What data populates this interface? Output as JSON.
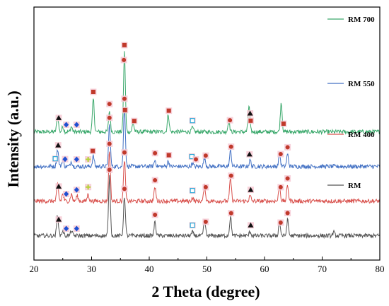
{
  "chart_data": {
    "type": "line",
    "xlabel": "2 Theta (degree)",
    "ylabel": "Intensity (a.u.)",
    "xlim": [
      20,
      80
    ],
    "xticks": [
      20,
      30,
      40,
      50,
      60,
      70,
      80
    ],
    "yticks_shown": false,
    "grid": false,
    "legend_placement": "top-right",
    "series": [
      {
        "name": "RM 700",
        "color": "#3aa86b",
        "offset": 3.0,
        "noise": 0.06,
        "peaks": [
          {
            "x": 24.1,
            "h": 0.45
          },
          {
            "x": 25.0,
            "h": 0.15
          },
          {
            "x": 26.5,
            "h": 0.15
          },
          {
            "x": 30.3,
            "h": 0.95
          },
          {
            "x": 33.1,
            "h": 0.6
          },
          {
            "x": 35.7,
            "h": 2.3
          },
          {
            "x": 37.2,
            "h": 0.25
          },
          {
            "x": 43.3,
            "h": 0.5
          },
          {
            "x": 47.5,
            "h": 0.12
          },
          {
            "x": 53.8,
            "h": 0.3
          },
          {
            "x": 57.3,
            "h": 0.75
          },
          {
            "x": 62.9,
            "h": 0.85
          }
        ],
        "markers": [
          {
            "x": 24.3,
            "symbol": "triangle"
          },
          {
            "x": 25.6,
            "symbol": "diamond"
          },
          {
            "x": 27.4,
            "symbol": "diamond"
          },
          {
            "x": 30.3,
            "symbol": "square"
          },
          {
            "x": 33.1,
            "symbol": "circle"
          },
          {
            "x": 35.6,
            "symbol": "circle"
          },
          {
            "x": 35.7,
            "symbol": "square"
          },
          {
            "x": 37.4,
            "symbol": "square"
          },
          {
            "x": 43.4,
            "symbol": "square"
          },
          {
            "x": 47.5,
            "symbol": "open-square"
          },
          {
            "x": 54.0,
            "symbol": "circle"
          },
          {
            "x": 57.5,
            "symbol": "triangle"
          },
          {
            "x": 57.6,
            "symbol": "square"
          },
          {
            "x": 63.3,
            "symbol": "square"
          }
        ]
      },
      {
        "name": "RM 550",
        "color": "#4472c4",
        "offset": 2.0,
        "noise": 0.06,
        "peaks": [
          {
            "x": 24.1,
            "h": 0.5
          },
          {
            "x": 25.0,
            "h": 0.2
          },
          {
            "x": 26.5,
            "h": 0.15
          },
          {
            "x": 30.3,
            "h": 0.3
          },
          {
            "x": 33.1,
            "h": 1.2
          },
          {
            "x": 35.7,
            "h": 1.75
          },
          {
            "x": 41.0,
            "h": 0.18
          },
          {
            "x": 43.3,
            "h": 0.15
          },
          {
            "x": 47.5,
            "h": 0.1
          },
          {
            "x": 49.6,
            "h": 0.25
          },
          {
            "x": 54.1,
            "h": 0.45
          },
          {
            "x": 57.5,
            "h": 0.18
          },
          {
            "x": 62.6,
            "h": 0.35
          },
          {
            "x": 64.0,
            "h": 0.35
          }
        ],
        "markers": [
          {
            "x": 23.7,
            "symbol": "open-square"
          },
          {
            "x": 24.2,
            "symbol": "triangle"
          },
          {
            "x": 25.4,
            "symbol": "diamond"
          },
          {
            "x": 27.4,
            "symbol": "diamond"
          },
          {
            "x": 29.4,
            "symbol": "cross"
          },
          {
            "x": 30.2,
            "symbol": "square"
          },
          {
            "x": 33.1,
            "symbol": "circle"
          },
          {
            "x": 35.7,
            "symbol": "circle"
          },
          {
            "x": 35.8,
            "symbol": "square"
          },
          {
            "x": 41.0,
            "symbol": "circle"
          },
          {
            "x": 43.4,
            "symbol": "square"
          },
          {
            "x": 47.4,
            "symbol": "open-square"
          },
          {
            "x": 48.1,
            "symbol": "circle"
          },
          {
            "x": 49.8,
            "symbol": "circle"
          },
          {
            "x": 54.2,
            "symbol": "circle"
          },
          {
            "x": 57.4,
            "symbol": "triangle"
          },
          {
            "x": 62.8,
            "symbol": "circle"
          },
          {
            "x": 64.0,
            "symbol": "circle"
          }
        ]
      },
      {
        "name": "RM 400",
        "color": "#d9534f",
        "offset": 1.0,
        "noise": 0.06,
        "peaks": [
          {
            "x": 24.1,
            "h": 0.5
          },
          {
            "x": 25.0,
            "h": 0.2
          },
          {
            "x": 26.5,
            "h": 0.2
          },
          {
            "x": 27.5,
            "h": 0.15
          },
          {
            "x": 29.4,
            "h": 0.2
          },
          {
            "x": 33.1,
            "h": 1.45
          },
          {
            "x": 35.7,
            "h": 1.2
          },
          {
            "x": 41.0,
            "h": 0.4
          },
          {
            "x": 47.5,
            "h": 0.1
          },
          {
            "x": 49.6,
            "h": 0.45
          },
          {
            "x": 54.1,
            "h": 0.65
          },
          {
            "x": 57.5,
            "h": 0.15
          },
          {
            "x": 62.6,
            "h": 0.45
          },
          {
            "x": 64.0,
            "h": 0.45
          }
        ],
        "markers": [
          {
            "x": 24.3,
            "symbol": "triangle"
          },
          {
            "x": 25.6,
            "symbol": "diamond"
          },
          {
            "x": 27.4,
            "symbol": "diamond"
          },
          {
            "x": 29.4,
            "symbol": "cross"
          },
          {
            "x": 33.1,
            "symbol": "circle"
          },
          {
            "x": 35.7,
            "symbol": "circle"
          },
          {
            "x": 41.0,
            "symbol": "circle"
          },
          {
            "x": 47.5,
            "symbol": "open-square"
          },
          {
            "x": 49.8,
            "symbol": "circle"
          },
          {
            "x": 54.2,
            "symbol": "circle"
          },
          {
            "x": 57.6,
            "symbol": "triangle"
          },
          {
            "x": 62.8,
            "symbol": "circle"
          },
          {
            "x": 64.0,
            "symbol": "circle"
          }
        ]
      },
      {
        "name": "RM",
        "color": "#555555",
        "offset": 0.0,
        "noise": 0.06,
        "peaks": [
          {
            "x": 24.1,
            "h": 0.6
          },
          {
            "x": 25.0,
            "h": 0.15
          },
          {
            "x": 26.5,
            "h": 0.15
          },
          {
            "x": 33.1,
            "h": 1.7
          },
          {
            "x": 35.7,
            "h": 1.15
          },
          {
            "x": 41.0,
            "h": 0.4
          },
          {
            "x": 47.5,
            "h": 0.1
          },
          {
            "x": 49.6,
            "h": 0.45
          },
          {
            "x": 54.1,
            "h": 0.55
          },
          {
            "x": 57.5,
            "h": 0.12
          },
          {
            "x": 62.6,
            "h": 0.4
          },
          {
            "x": 64.0,
            "h": 0.45
          },
          {
            "x": 72.0,
            "h": 0.1
          }
        ],
        "markers": [
          {
            "x": 24.3,
            "symbol": "triangle"
          },
          {
            "x": 25.6,
            "symbol": "diamond"
          },
          {
            "x": 27.4,
            "symbol": "diamond"
          },
          {
            "x": 33.1,
            "symbol": "circle"
          },
          {
            "x": 35.7,
            "symbol": "circle"
          },
          {
            "x": 41.0,
            "symbol": "circle"
          },
          {
            "x": 47.5,
            "symbol": "open-square"
          },
          {
            "x": 49.8,
            "symbol": "circle"
          },
          {
            "x": 54.2,
            "symbol": "circle"
          },
          {
            "x": 57.6,
            "symbol": "triangle"
          },
          {
            "x": 62.8,
            "symbol": "circle"
          },
          {
            "x": 64.0,
            "symbol": "circle"
          }
        ]
      }
    ],
    "marker_colors": {
      "circle": "#c0392b",
      "square": "#c0392b",
      "triangle": "#111111",
      "diamond": "#1f4fd1",
      "open-square": "#29a8d8",
      "cross": "#b5d334",
      "marker_backdrop": "#f6c9d4"
    }
  }
}
